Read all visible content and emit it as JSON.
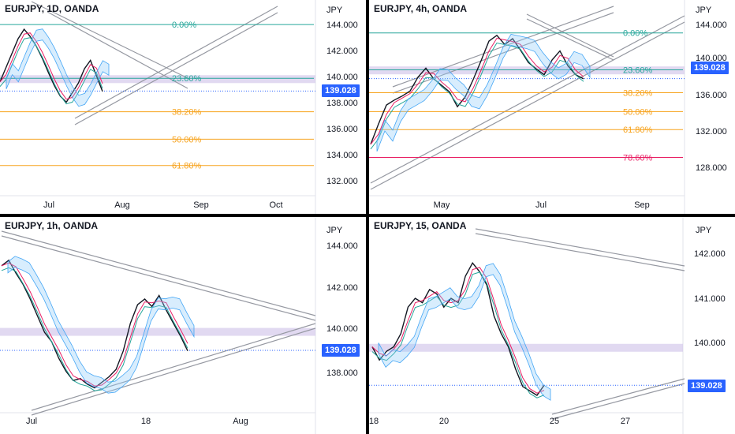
{
  "chart_data": [
    {
      "type": "line",
      "title": "EURJPY, 1D, OANDA",
      "unit": "JPY",
      "last_price": "139.028",
      "y_ticks": [
        "144.000",
        "142.000",
        "140.000",
        "138.000",
        "136.000",
        "134.000",
        "132.000"
      ],
      "x_ticks": [
        "Jul",
        "Aug",
        "Sep",
        "Oct"
      ],
      "fib_levels": [
        {
          "label": "0.00%",
          "price": 144.6,
          "color": "#26a69a"
        },
        {
          "label": "23.60%",
          "price": 140.1,
          "color": "#26a69a"
        },
        {
          "label": "38.20%",
          "price": 137.3,
          "color": "#f7a21b"
        },
        {
          "label": "50.00%",
          "price": 135.0,
          "color": "#f7a21b"
        },
        {
          "label": "61.80%",
          "price": 132.8,
          "color": "#f7a21b"
        }
      ],
      "series": [
        {
          "values": [
            139.8,
            141.0,
            142.2,
            143.4,
            144.2,
            143.6,
            142.8,
            141.8,
            140.6,
            139.5,
            138.6,
            138.1,
            138.9,
            139.7,
            140.9,
            141.6,
            140.3,
            139.0
          ]
        }
      ],
      "ylim": [
        130.8,
        145.2
      ]
    },
    {
      "type": "line",
      "title": "EURJPY, 4h, OANDA",
      "unit": "JPY",
      "last_price": "139.028",
      "y_ticks": [
        "144.000",
        "140.000",
        "136.000",
        "132.000",
        "128.000"
      ],
      "x_ticks": [
        "May",
        "Jul",
        "Sep"
      ],
      "fib_levels": [
        {
          "label": "0.00%",
          "price": 144.6,
          "color": "#26a69a"
        },
        {
          "label": "23.60%",
          "price": 140.1,
          "color": "#26a69a"
        },
        {
          "label": "38.20%",
          "price": 137.3,
          "color": "#f7a21b"
        },
        {
          "label": "50.00%",
          "price": 135.0,
          "color": "#f7a21b"
        },
        {
          "label": "61.80%",
          "price": 132.8,
          "color": "#f7a21b"
        },
        {
          "label": "78.60%",
          "price": 129.4,
          "color": "#e91e63"
        }
      ],
      "series": [
        {
          "values": [
            131.0,
            133.5,
            135.8,
            136.4,
            136.9,
            137.5,
            139.2,
            140.3,
            139.0,
            138.2,
            137.4,
            135.6,
            136.8,
            138.9,
            141.2,
            143.6,
            144.3,
            143.2,
            143.9,
            142.5,
            141.0,
            140.2,
            139.5,
            141.3,
            142.4,
            140.6,
            139.5,
            139.0
          ]
        }
      ],
      "ylim": [
        125.5,
        146.5
      ]
    },
    {
      "type": "line",
      "title": "EURJPY, 1h, OANDA",
      "unit": "JPY",
      "last_price": "139.028",
      "y_ticks": [
        "144.000",
        "142.000",
        "140.000",
        "138.000"
      ],
      "x_ticks": [
        "Jul",
        "18",
        "Aug"
      ],
      "series": [
        {
          "values": [
            143.6,
            143.9,
            143.2,
            142.6,
            141.8,
            140.9,
            140.0,
            139.5,
            138.6,
            137.9,
            137.4,
            137.5,
            137.2,
            137.0,
            137.3,
            137.6,
            138.0,
            139.0,
            140.5,
            141.5,
            141.8,
            141.4,
            142.0,
            141.2,
            140.5,
            139.8,
            139.0
          ]
        }
      ],
      "ylim": [
        136.0,
        145.3
      ]
    },
    {
      "type": "line",
      "title": "EURJPY, 15, OANDA",
      "unit": "JPY",
      "last_price": "139.028",
      "y_ticks": [
        "142.000",
        "141.000",
        "140.000"
      ],
      "x_ticks": [
        "18",
        "20",
        "25",
        "27"
      ],
      "series": [
        {
          "values": [
            139.9,
            139.6,
            139.8,
            139.9,
            140.2,
            140.8,
            141.0,
            140.9,
            141.2,
            141.1,
            140.8,
            141.0,
            140.9,
            141.5,
            141.8,
            141.6,
            141.3,
            140.6,
            140.2,
            139.9,
            139.4,
            139.0,
            138.9,
            138.8,
            139.03
          ]
        }
      ],
      "ylim": [
        138.55,
        142.45
      ]
    }
  ]
}
